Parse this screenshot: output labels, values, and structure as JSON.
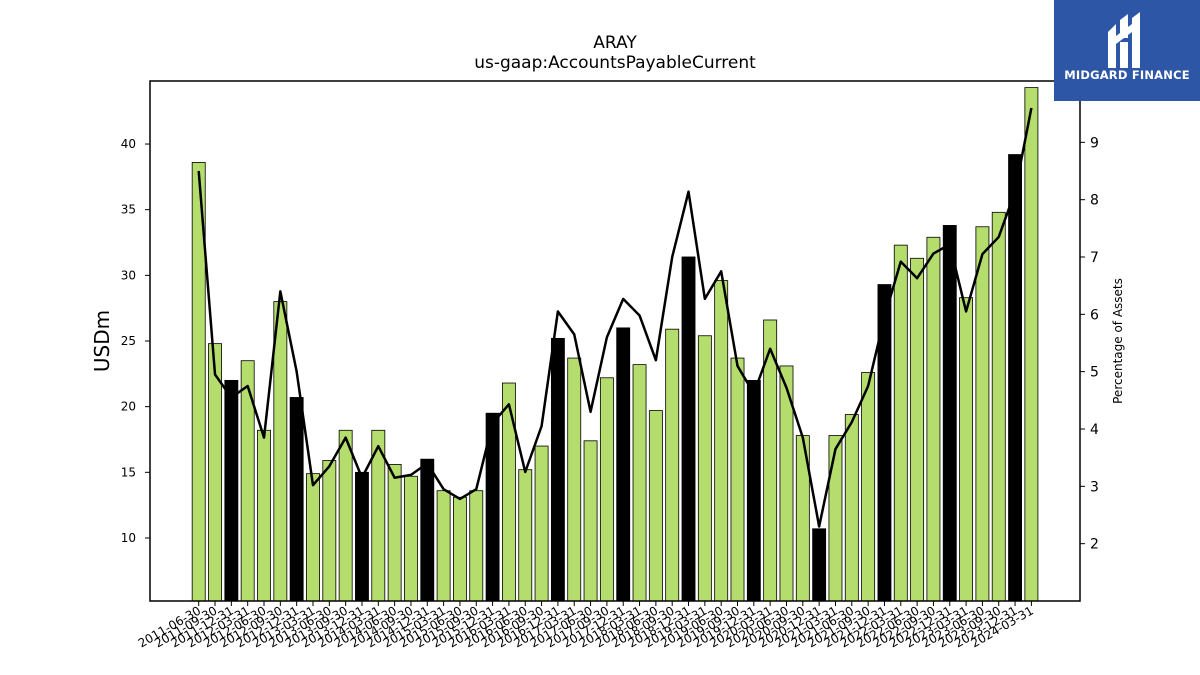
{
  "chart_data": {
    "type": "bar",
    "title": "ARAY",
    "subtitle": "us-gaap:AccountsPayableCurrent",
    "ylabel": "USDm",
    "y2label": "Percentage of Assets",
    "ylim": [
      5.2,
      44.8
    ],
    "y2lim": [
      1.0,
      10.07
    ],
    "yticks": [
      10,
      15,
      20,
      25,
      30,
      35,
      40
    ],
    "y2ticks": [
      2,
      3,
      4,
      5,
      6,
      7,
      8,
      9
    ],
    "colors": {
      "bar": "#b5dd6e",
      "bar_highlight": "#000000",
      "line": "#000000"
    },
    "categories": [
      "2011-06-30",
      "2011-09-30",
      "2011-12-31",
      "2012-03-31",
      "2012-06-30",
      "2012-09-30",
      "2012-12-31",
      "2013-03-31",
      "2013-06-30",
      "2013-09-30",
      "2013-12-31",
      "2014-03-31",
      "2014-06-30",
      "2014-09-30",
      "2014-12-31",
      "2015-03-31",
      "2015-06-30",
      "2015-09-30",
      "2015-12-31",
      "2016-03-31",
      "2016-06-30",
      "2016-09-30",
      "2016-12-31",
      "2017-03-31",
      "2017-06-30",
      "2017-09-30",
      "2017-12-31",
      "2018-03-31",
      "2018-06-30",
      "2018-09-30",
      "2018-12-31",
      "2019-03-31",
      "2019-06-30",
      "2019-09-30",
      "2019-12-31",
      "2020-03-31",
      "2020-06-30",
      "2020-09-30",
      "2020-12-31",
      "2021-03-31",
      "2021-06-30",
      "2021-09-30",
      "2021-12-31",
      "2022-03-31",
      "2022-06-30",
      "2022-09-30",
      "2022-12-31",
      "2023-03-31",
      "2023-06-30",
      "2023-09-30",
      "2023-12-31",
      "2024-03-31"
    ],
    "series": [
      {
        "type": "bar",
        "values": [
          38.6,
          24.8,
          22.0,
          23.5,
          18.2,
          28.0,
          20.7,
          14.9,
          15.9,
          18.2,
          15.0,
          18.2,
          15.6,
          14.7,
          16.0,
          13.6,
          13.1,
          13.6,
          19.5,
          21.8,
          15.2,
          17.0,
          25.2,
          23.7,
          17.4,
          22.2,
          26.0,
          23.2,
          19.7,
          25.9,
          31.4,
          25.4,
          29.6,
          23.7,
          22.0,
          26.6,
          23.1,
          17.8,
          10.7,
          17.8,
          19.4,
          22.6,
          29.3,
          32.3,
          31.3,
          32.9,
          33.8,
          28.3,
          33.7,
          34.8,
          39.2,
          44.3
        ],
        "highlight": [
          false,
          false,
          true,
          false,
          false,
          false,
          true,
          false,
          false,
          false,
          true,
          false,
          false,
          false,
          true,
          false,
          false,
          false,
          true,
          false,
          false,
          false,
          true,
          false,
          false,
          false,
          true,
          false,
          false,
          false,
          true,
          false,
          false,
          false,
          true,
          false,
          false,
          false,
          true,
          false,
          false,
          false,
          true,
          false,
          false,
          false,
          true,
          false,
          false,
          false,
          true,
          false
        ]
      },
      {
        "type": "line",
        "axis": "right",
        "values": [
          8.5,
          4.95,
          4.55,
          4.75,
          3.85,
          6.4,
          5.0,
          3.02,
          3.35,
          3.85,
          3.15,
          3.7,
          3.15,
          3.2,
          3.4,
          2.95,
          2.78,
          2.95,
          4.1,
          4.43,
          3.25,
          4.05,
          6.05,
          5.65,
          4.3,
          5.6,
          6.27,
          5.98,
          5.2,
          7.0,
          8.14,
          6.27,
          6.75,
          5.1,
          4.62,
          5.4,
          4.72,
          3.85,
          2.3,
          3.65,
          4.12,
          4.75,
          5.95,
          6.92,
          6.63,
          7.06,
          7.22,
          6.05,
          7.05,
          7.35,
          8.14,
          9.6
        ]
      }
    ]
  },
  "logo": {
    "text": "MIDGARD FINANCE"
  }
}
